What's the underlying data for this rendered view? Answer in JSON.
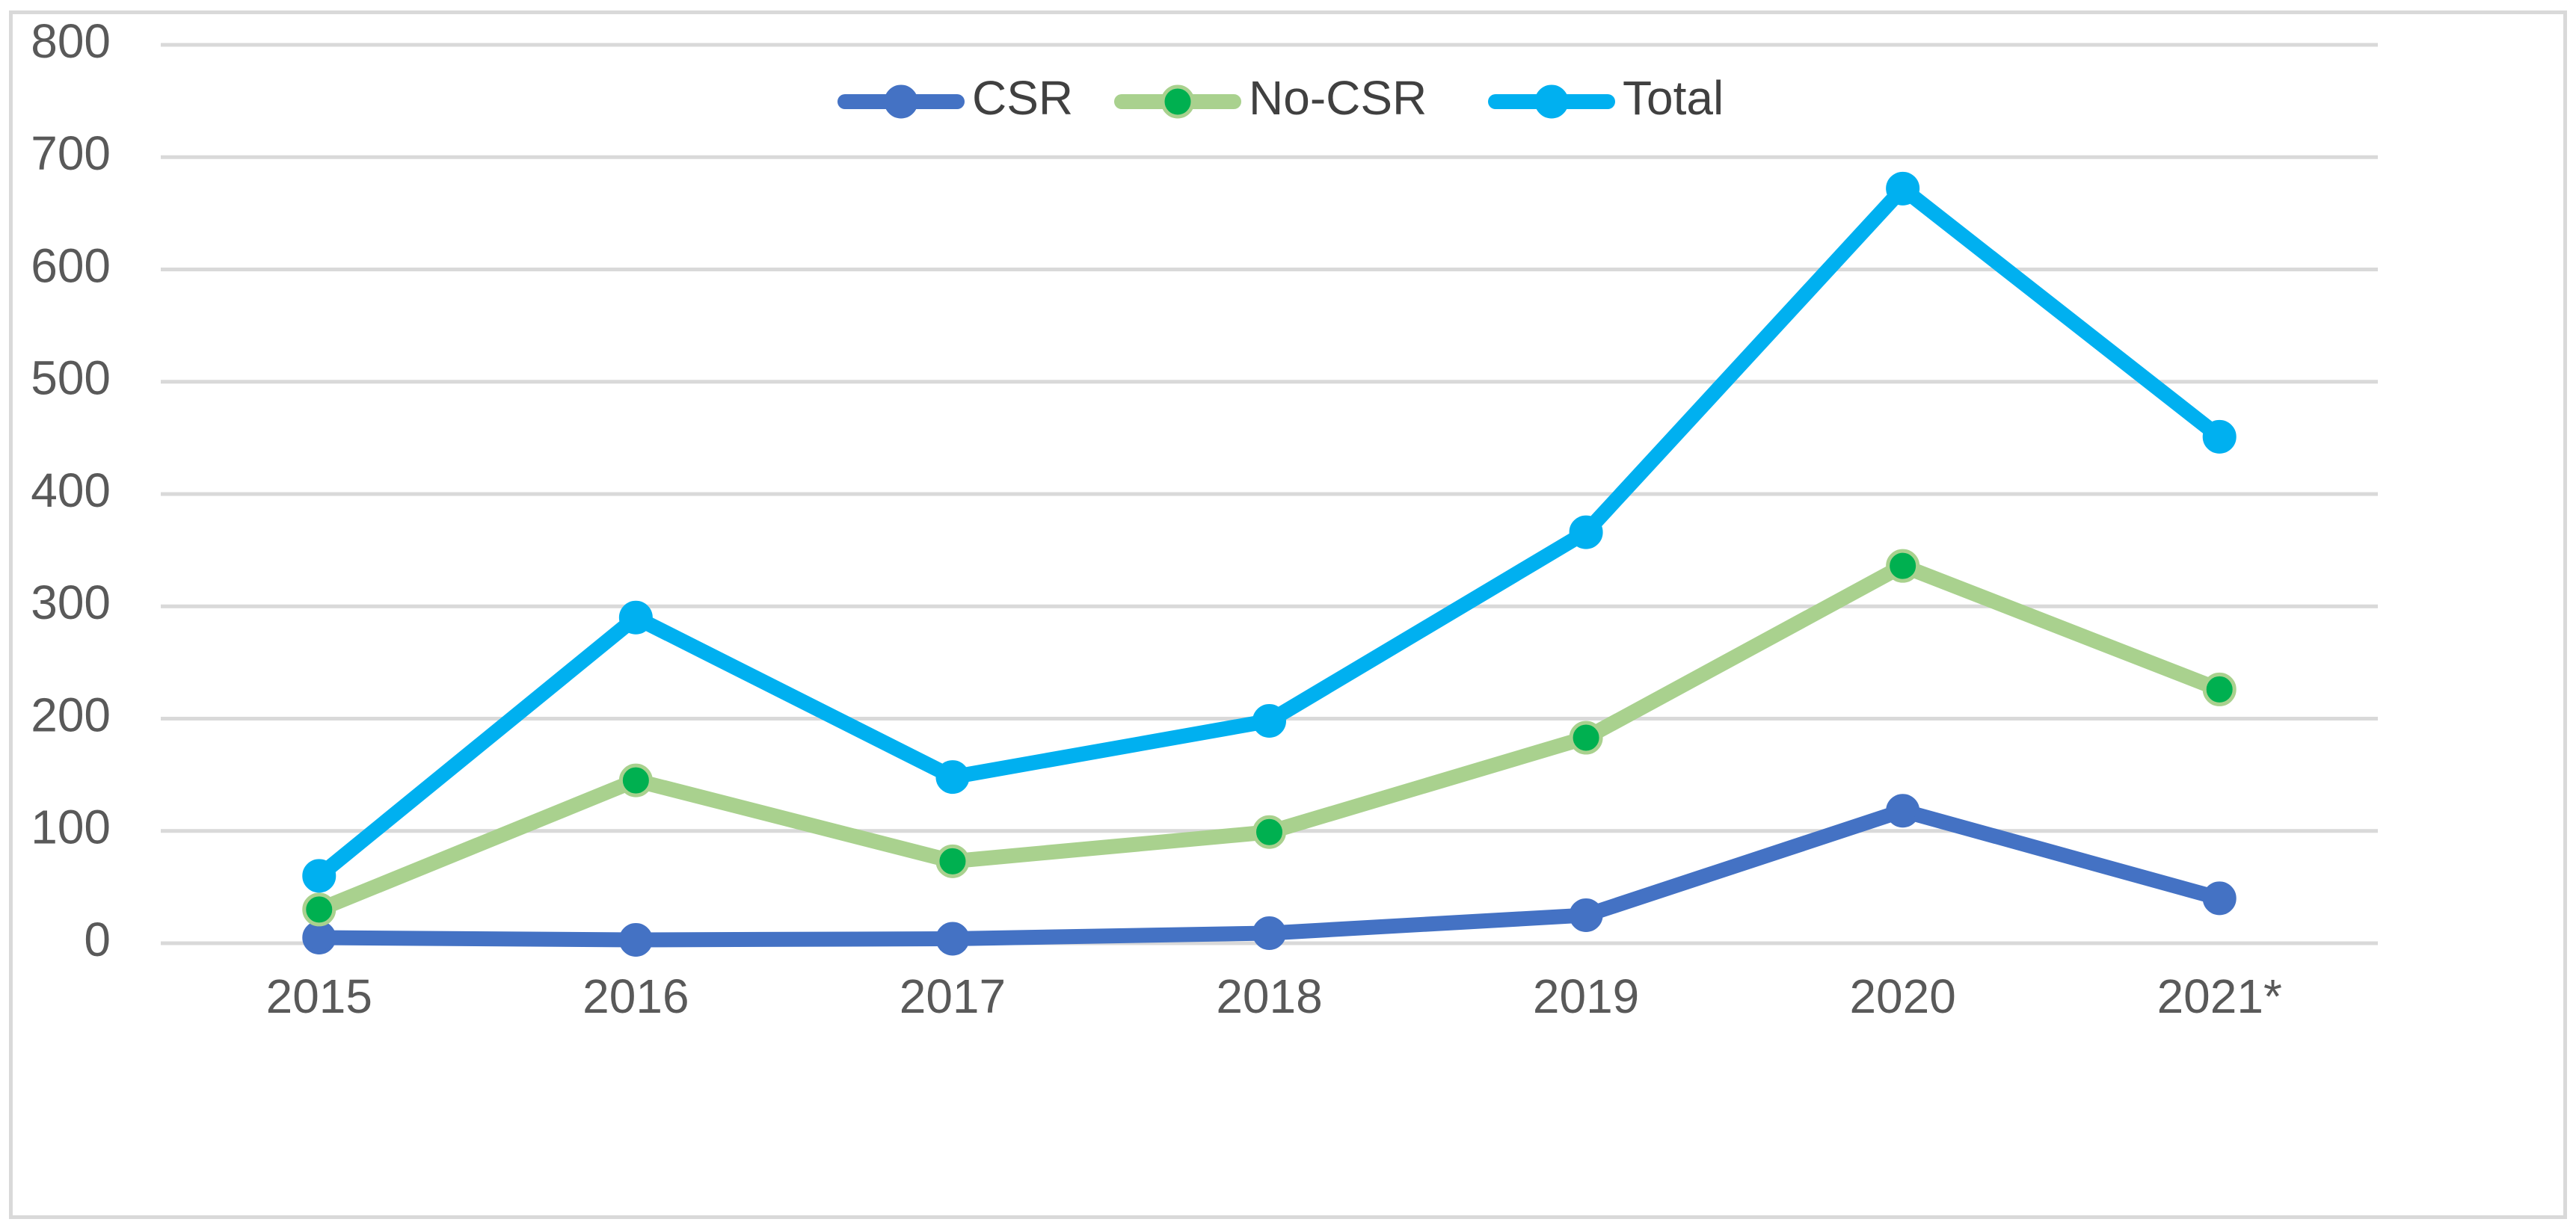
{
  "chart_data": {
    "type": "line",
    "title": "",
    "xlabel": "",
    "ylabel": "",
    "categories": [
      "2015",
      "2016",
      "2017",
      "2018",
      "2019",
      "2020",
      "2021*"
    ],
    "ylim": [
      0,
      800
    ],
    "yticks": [
      0,
      100,
      200,
      300,
      400,
      500,
      600,
      700,
      800
    ],
    "ytick_labels": [
      "0",
      "100",
      "200",
      "300",
      "400",
      "500",
      "600",
      "700",
      "800"
    ],
    "grid": true,
    "legend_position": "top-center",
    "series": [
      {
        "name": "CSR",
        "values": [
          5,
          3,
          4,
          9,
          25,
          118,
          40
        ],
        "line_color": "#4472c4",
        "marker_fill": "#4472c4",
        "marker_stroke": "#4472c4"
      },
      {
        "name": "No-CSR",
        "values": [
          30,
          145,
          73,
          99,
          183,
          336,
          226
        ],
        "line_color": "#a9d18e",
        "marker_fill": "#00b050",
        "marker_stroke": "#a9d18e"
      },
      {
        "name": "Total",
        "values": [
          60,
          290,
          148,
          198,
          366,
          672,
          451
        ],
        "line_color": "#00b0f0",
        "marker_fill": "#00b0f0",
        "marker_stroke": "#00b0f0"
      }
    ]
  },
  "colors": {
    "gridline": "#d9d9d9",
    "frame": "#d9d9d9",
    "tick_text": "#595959",
    "legend_text": "#404040"
  }
}
